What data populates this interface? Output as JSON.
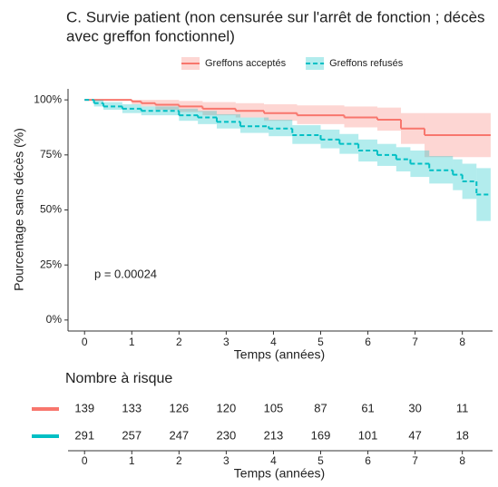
{
  "chart_data": {
    "type": "step",
    "title": [
      "C. Survie patient (non censurée sur l'arrêt de fonction ; décès",
      " avec greffon fonctionnel)"
    ],
    "x_label": "Temps (années)",
    "y_label": "Pourcentage sans décès (%)",
    "annotation": "p = 0.00024",
    "xlim": [
      -0.35,
      8.64
    ],
    "ylim": [
      -5,
      105
    ],
    "xticks": [
      0,
      1,
      2,
      3,
      4,
      5,
      6,
      7,
      8
    ],
    "yticks": [
      {
        "value": 0,
        "label": "0%"
      },
      {
        "value": 25,
        "label": "25%"
      },
      {
        "value": 50,
        "label": "50%"
      },
      {
        "value": 75,
        "label": "75%"
      },
      {
        "value": 100,
        "label": "100%"
      }
    ],
    "series": [
      {
        "name": "Greffons acceptés",
        "color": "#F8766D",
        "dash": false,
        "x": [
          0,
          1,
          1.2,
          1.5,
          2,
          2.5,
          3.2,
          3.8,
          4.5,
          5.5,
          6.2,
          6.7,
          7.2,
          8.6
        ],
        "values": [
          100,
          99.3,
          98.5,
          97.8,
          97,
          96,
          95,
          94,
          93,
          92,
          91,
          87,
          84,
          84
        ],
        "lower": [
          100,
          98,
          97,
          95.5,
          94.5,
          93,
          92,
          90.5,
          89,
          87.5,
          86,
          80,
          74,
          74
        ],
        "upper": [
          100,
          100,
          100,
          100,
          99.5,
          99,
          98.5,
          98,
          97.5,
          97,
          96.5,
          94,
          94,
          94
        ]
      },
      {
        "name": "Greffons refusés",
        "color": "#00BFC4",
        "dash": true,
        "x": [
          0,
          0.2,
          0.4,
          0.8,
          1.2,
          2,
          2.4,
          2.8,
          3.3,
          3.9,
          4.4,
          5,
          5.4,
          5.8,
          6.2,
          6.6,
          6.9,
          7.3,
          7.8,
          8,
          8.3,
          8.6
        ],
        "values": [
          100,
          98.5,
          97,
          96,
          95,
          93,
          92,
          90,
          88,
          87,
          84,
          82,
          80,
          77,
          75,
          73,
          71,
          68,
          66,
          63,
          57,
          57
        ],
        "lower": [
          100,
          97,
          95.5,
          94,
          93,
          90.5,
          89,
          87,
          85,
          83.5,
          80,
          78,
          75.5,
          72,
          70,
          67.5,
          65,
          62,
          59,
          55,
          45,
          45
        ],
        "upper": [
          100,
          100,
          99,
          98,
          97,
          96,
          95,
          93.5,
          92,
          91,
          88.5,
          86.5,
          84.5,
          82,
          80,
          78.5,
          77,
          74.5,
          73,
          71,
          69,
          69
        ]
      }
    ],
    "risk_table": {
      "title": "Nombre à risque",
      "rows": [
        [
          139,
          133,
          126,
          120,
          105,
          87,
          61,
          30,
          11
        ],
        [
          291,
          257,
          247,
          230,
          213,
          169,
          101,
          47,
          18
        ]
      ]
    }
  }
}
